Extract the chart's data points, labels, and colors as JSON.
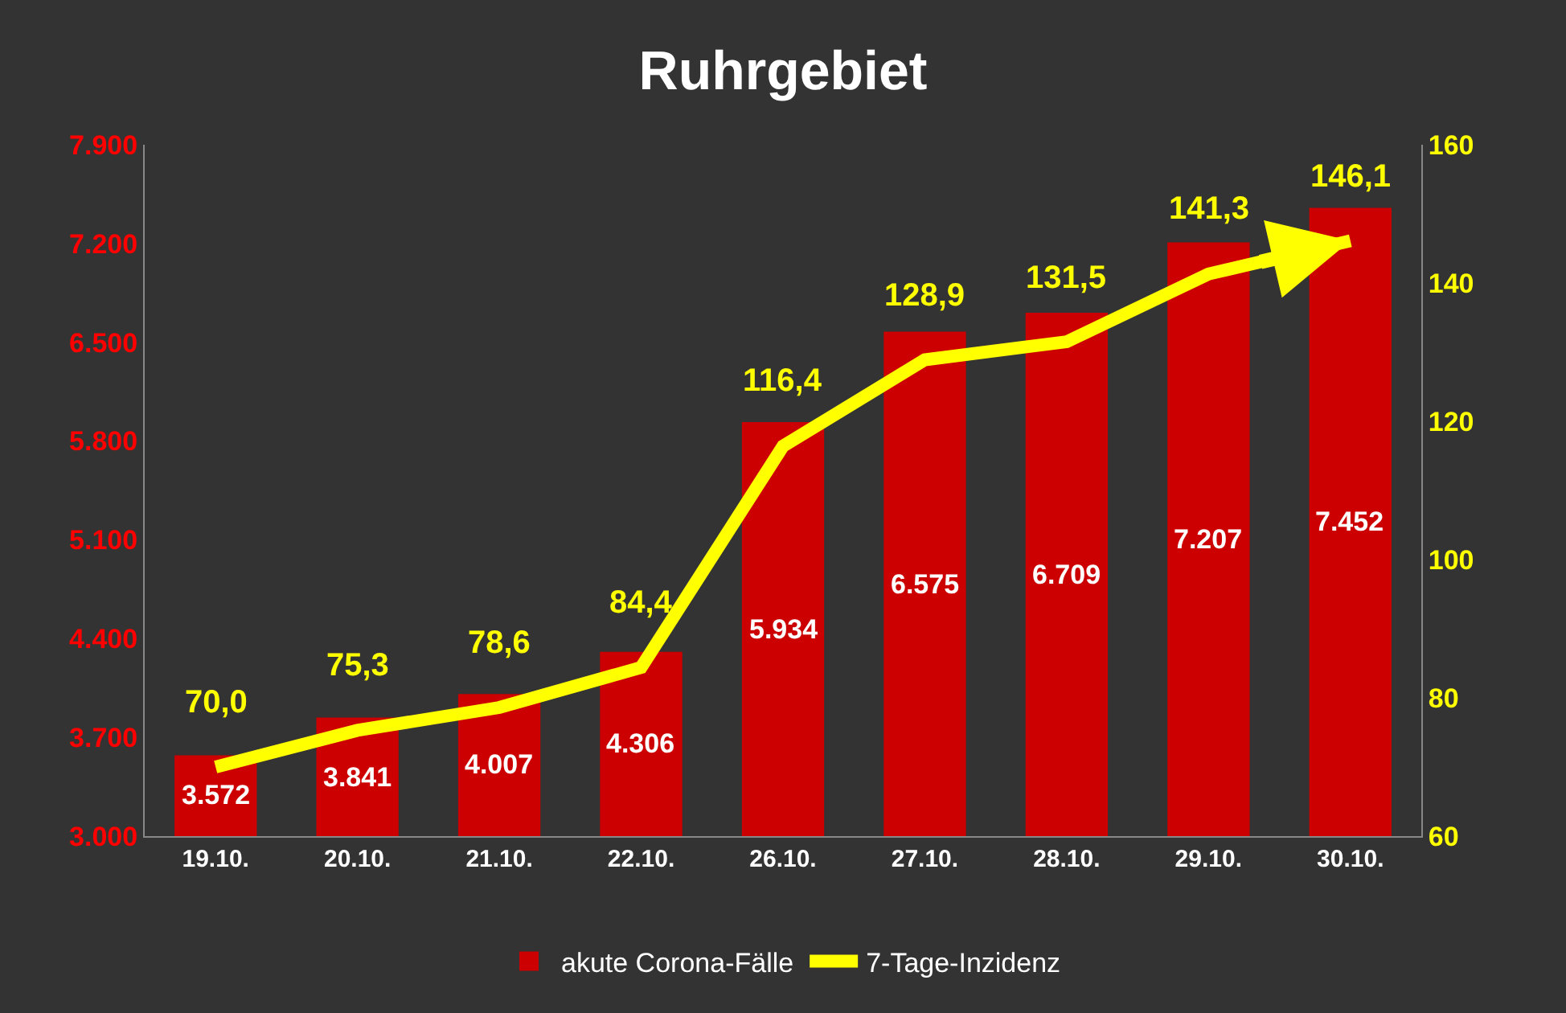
{
  "chart_data": {
    "type": "bar",
    "title": "Ruhrgebiet",
    "categories": [
      "19.10.",
      "20.10.",
      "21.10.",
      "22.10.",
      "26.10.",
      "27.10.",
      "28.10.",
      "29.10.",
      "30.10."
    ],
    "series": [
      {
        "name": "akute Corona-Fälle",
        "color": "#cc0000",
        "values": [
          3572,
          3841,
          4007,
          4306,
          5934,
          6575,
          6709,
          7207,
          7452
        ],
        "value_labels": [
          "3.572",
          "3.841",
          "4.007",
          "4.306",
          "5.934",
          "6.575",
          "6.709",
          "7.207",
          "7.452"
        ]
      },
      {
        "name": "7-Tage-Inzidenz",
        "type": "line",
        "axis": "y2",
        "color": "#ffff00",
        "marker": "none",
        "values": [
          70.0,
          75.3,
          78.6,
          84.4,
          116.4,
          128.9,
          131.5,
          141.3,
          146.1
        ],
        "value_labels": [
          "70,0",
          "75,3",
          "78,6",
          "84,4",
          "116,4",
          "128,9",
          "131,5",
          "141,3",
          "146,1"
        ]
      }
    ],
    "ylim": [
      3000,
      7900
    ],
    "yticks": [
      {
        "value": 3000,
        "label": "3.000"
      },
      {
        "value": 3700,
        "label": "3.700"
      },
      {
        "value": 4400,
        "label": "4.400"
      },
      {
        "value": 5100,
        "label": "5.100"
      },
      {
        "value": 5800,
        "label": "5.800"
      },
      {
        "value": 6500,
        "label": "6.500"
      },
      {
        "value": 7200,
        "label": "7.200"
      },
      {
        "value": 7900,
        "label": "7.900"
      }
    ],
    "y2lim": [
      60,
      160
    ],
    "y2ticks": [
      60,
      80,
      100,
      120,
      140,
      160
    ],
    "legend": "bottom"
  }
}
